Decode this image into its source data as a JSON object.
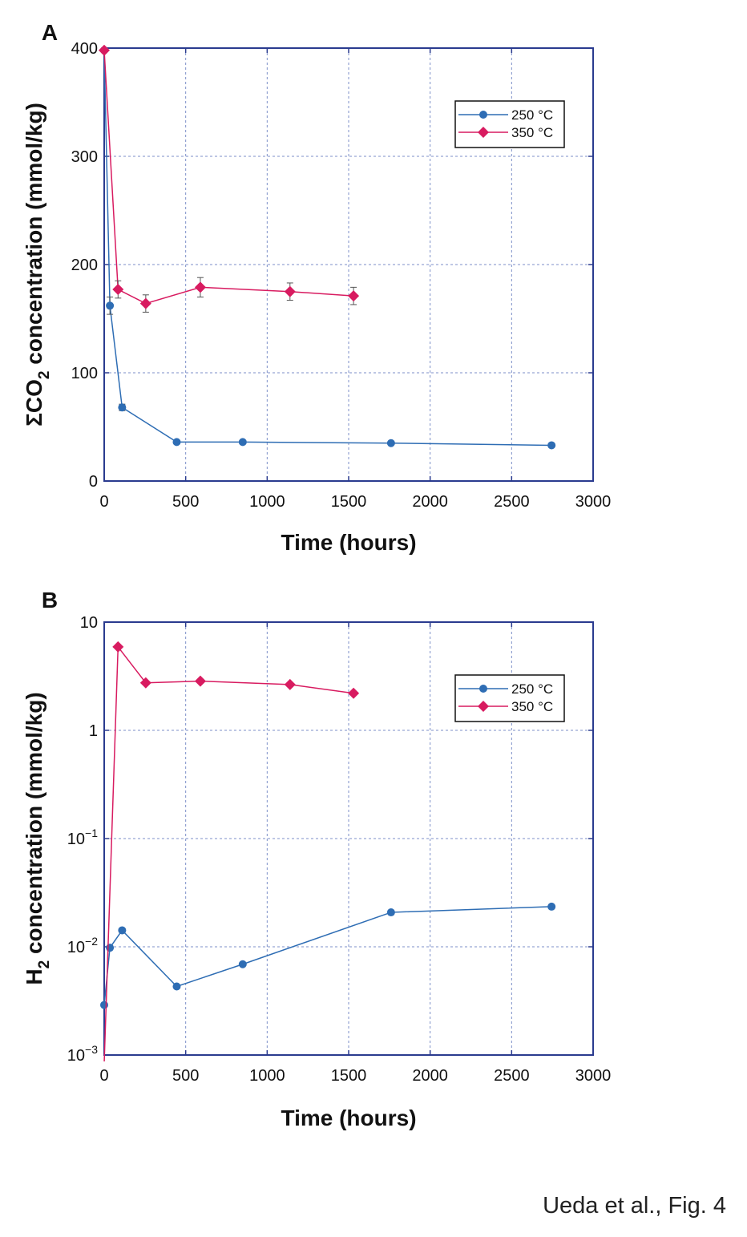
{
  "caption": "Ueda et al., Fig. 4",
  "colors": {
    "frame": "#2a3b8f",
    "grid": "#7d8fc8",
    "series_250": "#2e6db4",
    "series_350": "#d81b60",
    "error": "#555555"
  },
  "chart_data": [
    {
      "panel_label": "A",
      "type": "line",
      "xlabel": "Time (hours)",
      "ylabel_parts": [
        "ΣCO",
        "2",
        " concentration (mmol/kg)"
      ],
      "xlim": [
        0,
        3000
      ],
      "ylim": [
        0,
        400
      ],
      "yscale": "linear",
      "xticks": [
        0,
        500,
        1000,
        1500,
        2000,
        2500,
        3000
      ],
      "yticks": [
        0,
        100,
        200,
        300,
        400
      ],
      "ytick_labels": [
        "0",
        "100",
        "200",
        "300",
        "400"
      ],
      "grid": true,
      "legend_position": "top-right",
      "series": [
        {
          "name": "250 °C",
          "marker": "circle",
          "x": [
            0,
            35,
            110,
            445,
            850,
            1760,
            2745
          ],
          "y": [
            398,
            162,
            68,
            36,
            36,
            35,
            33
          ],
          "err": [
            0,
            8,
            3,
            0,
            0,
            0,
            0
          ]
        },
        {
          "name": "350 °C",
          "marker": "diamond",
          "x": [
            0,
            85,
            255,
            590,
            1140,
            1530
          ],
          "y": [
            398,
            177,
            164,
            179,
            175,
            171
          ],
          "err": [
            0,
            8,
            8,
            9,
            8,
            8
          ]
        }
      ]
    },
    {
      "panel_label": "B",
      "type": "line",
      "xlabel": "Time (hours)",
      "ylabel_parts": [
        "H",
        "2",
        " concentration (mmol/kg)"
      ],
      "xlim": [
        0,
        3000
      ],
      "ylim": [
        0.001,
        10
      ],
      "yscale": "log",
      "xticks": [
        0,
        500,
        1000,
        1500,
        2000,
        2500,
        3000
      ],
      "yticks": [
        0.001,
        0.01,
        0.1,
        1,
        10
      ],
      "ytick_labels": [
        {
          "base": "10",
          "exp": "−3"
        },
        {
          "base": "10",
          "exp": "−2"
        },
        {
          "base": "10",
          "exp": "−1"
        },
        {
          "base": "1",
          "exp": ""
        },
        {
          "base": "10",
          "exp": ""
        }
      ],
      "grid": true,
      "legend_position": "top-right",
      "series": [
        {
          "name": "250 °C",
          "marker": "circle",
          "x": [
            0,
            35,
            110,
            445,
            850,
            1760,
            2745
          ],
          "y": [
            0.0029,
            0.0098,
            0.0142,
            0.0043,
            0.0069,
            0.0208,
            0.0235
          ]
        },
        {
          "name": "350 °C",
          "marker": "diamond",
          "x": [
            0,
            85,
            255,
            590,
            1140,
            1530
          ],
          "y": [
            0.001,
            5.9,
            2.75,
            2.85,
            2.65,
            2.2
          ],
          "first_point_below_axis": true
        }
      ]
    }
  ]
}
